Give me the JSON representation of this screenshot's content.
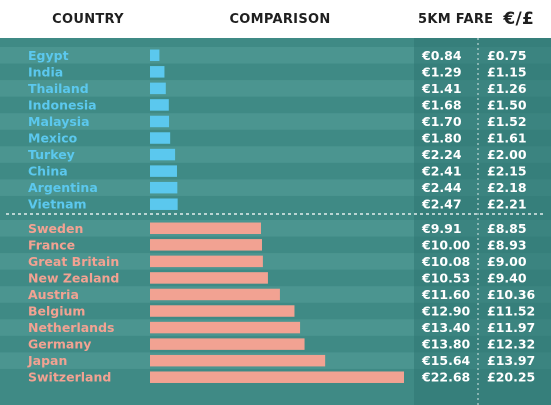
{
  "headers": {
    "country": "COUNTRY",
    "comparison": "COMPARISON",
    "fare": "5KM FARE",
    "currency": "€/£"
  },
  "colors": {
    "background": "#3f8a85",
    "stripe": "#4b9590",
    "fare_panel": "#2f7672",
    "cheap": "#5bc8ee",
    "expensive": "#f2a292",
    "header_bg": "#ffffff",
    "header_text": "#1f1f1f",
    "value_text": "#ffffff"
  },
  "chart_data": {
    "type": "bar",
    "orientation": "horizontal",
    "groups": [
      {
        "name": "cheapest",
        "color": "#5bc8ee",
        "rows": [
          {
            "country": "Egypt",
            "eur": 0.84,
            "eur_label": "€0.84",
            "gbp_label": "£0.75"
          },
          {
            "country": "India",
            "eur": 1.29,
            "eur_label": "€1.29",
            "gbp_label": "£1.15"
          },
          {
            "country": "Thailand",
            "eur": 1.41,
            "eur_label": "€1.41",
            "gbp_label": "£1.26"
          },
          {
            "country": "Indonesia",
            "eur": 1.68,
            "eur_label": "€1.68",
            "gbp_label": "£1.50"
          },
          {
            "country": "Malaysia",
            "eur": 1.7,
            "eur_label": "€1.70",
            "gbp_label": "£1.52"
          },
          {
            "country": "Mexico",
            "eur": 1.8,
            "eur_label": "€1.80",
            "gbp_label": "£1.61"
          },
          {
            "country": "Turkey",
            "eur": 2.24,
            "eur_label": "€2.24",
            "gbp_label": "£2.00"
          },
          {
            "country": "China",
            "eur": 2.41,
            "eur_label": "€2.41",
            "gbp_label": "£2.15"
          },
          {
            "country": "Argentina",
            "eur": 2.44,
            "eur_label": "€2.44",
            "gbp_label": "£2.18"
          },
          {
            "country": "Vietnam",
            "eur": 2.47,
            "eur_label": "€2.47",
            "gbp_label": "£2.21"
          }
        ]
      },
      {
        "name": "most-expensive",
        "color": "#f2a292",
        "rows": [
          {
            "country": "Sweden",
            "eur": 9.91,
            "eur_label": "€9.91",
            "gbp_label": "£8.85"
          },
          {
            "country": "France",
            "eur": 10.0,
            "eur_label": "€10.00",
            "gbp_label": "£8.93"
          },
          {
            "country": "Great Britain",
            "eur": 10.08,
            "eur_label": "€10.08",
            "gbp_label": "£9.00"
          },
          {
            "country": "New Zealand",
            "eur": 10.53,
            "eur_label": "€10.53",
            "gbp_label": "£9.40"
          },
          {
            "country": "Austria",
            "eur": 11.6,
            "eur_label": "€11.60",
            "gbp_label": "£10.36"
          },
          {
            "country": "Belgium",
            "eur": 12.9,
            "eur_label": "€12.90",
            "gbp_label": "£11.52"
          },
          {
            "country": "Netherlands",
            "eur": 13.4,
            "eur_label": "€13.40",
            "gbp_label": "£11.97"
          },
          {
            "country": "Germany",
            "eur": 13.8,
            "eur_label": "€13.80",
            "gbp_label": "£12.32"
          },
          {
            "country": "Japan",
            "eur": 15.64,
            "eur_label": "€15.64",
            "gbp_label": "£13.97"
          },
          {
            "country": "Switzerland",
            "eur": 22.68,
            "eur_label": "€22.68",
            "gbp_label": "£20.25"
          }
        ]
      }
    ],
    "xlim": [
      0,
      22.68
    ],
    "grid": false,
    "legend": "none"
  }
}
